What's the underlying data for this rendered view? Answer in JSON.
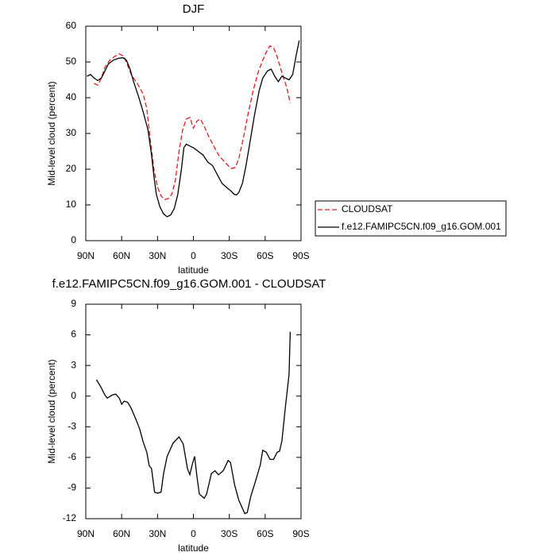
{
  "chart_data": [
    {
      "type": "line",
      "title": "DJF",
      "x_label": "latitude",
      "y_label": "Mid-level cloud (percent)",
      "xlim": [
        90,
        -90
      ],
      "ylim": [
        0,
        60
      ],
      "xticks": [
        {
          "value": 90,
          "label": "90N"
        },
        {
          "value": 60,
          "label": "60N"
        },
        {
          "value": 30,
          "label": "30N"
        },
        0,
        {
          "value": -30,
          "label": "30S"
        },
        {
          "value": -60,
          "label": "60S"
        },
        {
          "value": -90,
          "label": "90S"
        }
      ],
      "yticks": [
        0,
        10,
        20,
        30,
        40,
        50,
        60
      ],
      "legend": "right",
      "series": [
        {
          "name": "CLOUDSAT",
          "color": "#e31a1c",
          "linestyle": "dashed",
          "x": [
            83,
            80,
            77,
            74,
            70,
            66,
            62,
            58,
            55,
            52,
            49,
            46,
            42,
            39,
            36,
            33,
            30,
            27,
            24,
            21,
            18,
            15,
            12,
            9,
            6,
            3,
            0,
            -3,
            -6,
            -9,
            -13,
            -17,
            -21,
            -25,
            -29,
            -32,
            -35,
            -38,
            -42,
            -46,
            -50,
            -54,
            -58,
            -62,
            -64,
            -67,
            -70,
            -74,
            -78,
            -81
          ],
          "values": [
            44,
            43.5,
            45.5,
            48.5,
            50.5,
            51.5,
            52.3,
            51.5,
            49,
            46.5,
            45,
            43.5,
            41,
            37,
            28,
            20,
            15,
            12.5,
            11.5,
            11.8,
            13,
            17,
            25,
            31,
            34,
            34.5,
            31.5,
            33.5,
            34,
            32,
            29,
            26.5,
            24,
            22.5,
            21,
            20.2,
            20.5,
            23,
            29,
            36,
            42,
            47,
            50.5,
            53.5,
            54.5,
            54,
            51.5,
            47,
            43,
            38.5
          ]
        },
        {
          "name": "f.e12.FAMIPC5CN.f09_g16.GOM.001",
          "color": "#000000",
          "linestyle": "solid",
          "x": [
            89,
            86,
            83,
            80,
            77,
            74,
            71,
            67,
            63,
            59,
            56,
            53,
            50,
            46,
            42,
            38,
            35,
            33,
            31,
            28,
            25,
            22,
            19,
            16,
            13,
            10,
            8,
            6,
            3,
            0,
            -4,
            -8,
            -12,
            -16,
            -20,
            -24,
            -28,
            -31,
            -34,
            -36,
            -38,
            -41,
            -44,
            -47,
            -51,
            -55,
            -58,
            -62,
            -65,
            -68,
            -71,
            -74,
            -77,
            -80,
            -83,
            -86,
            -88.5
          ],
          "values": [
            46,
            46.5,
            45.5,
            44.8,
            45.5,
            47.5,
            49.5,
            50.5,
            51,
            51.2,
            50.5,
            48,
            44.5,
            40.5,
            36,
            31,
            24,
            18,
            13,
            9.5,
            7.5,
            6.7,
            7.2,
            9,
            13,
            20,
            26,
            27,
            26.5,
            26,
            25,
            24,
            22,
            21,
            18.5,
            16,
            14.8,
            14,
            13,
            12.8,
            13.5,
            16,
            21,
            27,
            35,
            42,
            45.5,
            47.5,
            48,
            46,
            44.5,
            46,
            45.5,
            45,
            46.5,
            52,
            56
          ]
        }
      ]
    },
    {
      "type": "line",
      "title": "f.e12.FAMIPC5CN.f09_g16.GOM.001 - CLOUDSAT",
      "x_label": "latitude",
      "y_label": "Mid-level cloud (percent)",
      "xlim": [
        90,
        -90
      ],
      "ylim": [
        -12,
        9
      ],
      "xticks": [
        {
          "value": 90,
          "label": "90N"
        },
        {
          "value": 60,
          "label": "60N"
        },
        {
          "value": 30,
          "label": "30N"
        },
        0,
        {
          "value": -30,
          "label": "30S"
        },
        {
          "value": -60,
          "label": "60S"
        },
        {
          "value": -90,
          "label": "90S"
        }
      ],
      "yticks": [
        -12,
        -9,
        -6,
        -3,
        0,
        3,
        6,
        9
      ],
      "series": [
        {
          "color": "#000000",
          "linestyle": "solid",
          "x": [
            81,
            77,
            74,
            72,
            68,
            65,
            62,
            60,
            58,
            55,
            52,
            48,
            45,
            42,
            39,
            37,
            35,
            32.5,
            30,
            27,
            25,
            22,
            17,
            12,
            8.5,
            5,
            3,
            1,
            -1,
            -3,
            -5,
            -9,
            -11,
            -15,
            -18,
            -21,
            -25,
            -29,
            -31,
            -34.5,
            -38,
            -43,
            -45,
            -48,
            -52,
            -56,
            -58,
            -61,
            -64,
            -67,
            -70,
            -72,
            -74,
            -77,
            -80,
            -81
          ],
          "values": [
            1.6,
            0.8,
            0.1,
            -0.2,
            0.1,
            0.2,
            -0.2,
            -0.8,
            -0.5,
            -0.6,
            -1.2,
            -2.3,
            -3.2,
            -4.5,
            -5.5,
            -6.8,
            -7.1,
            -9.4,
            -9.5,
            -9.4,
            -7.6,
            -5.9,
            -4.6,
            -4,
            -4.7,
            -7.1,
            -7.7,
            -6.7,
            -5.9,
            -7.9,
            -9.6,
            -10,
            -9.6,
            -7.6,
            -7.3,
            -7.7,
            -7.3,
            -6.3,
            -6.5,
            -8.7,
            -10.2,
            -11.5,
            -11.4,
            -9.8,
            -8.3,
            -6.7,
            -5.3,
            -5.5,
            -6.2,
            -6.2,
            -5.5,
            -5.4,
            -4.4,
            -1,
            2.1,
            6.3
          ]
        }
      ]
    }
  ]
}
